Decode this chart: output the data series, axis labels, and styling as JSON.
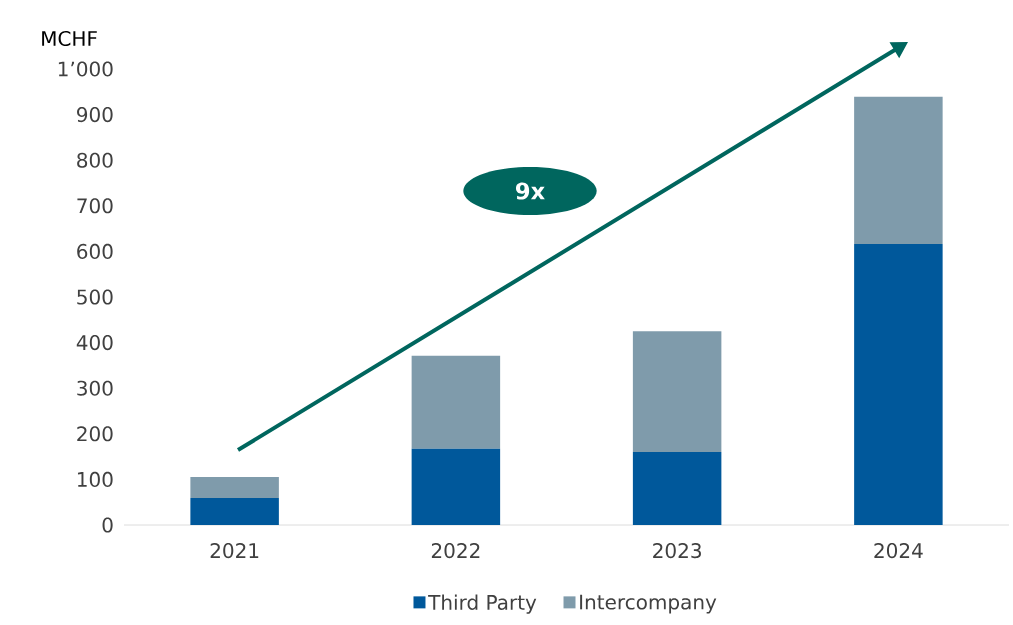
{
  "chart_data": {
    "type": "bar",
    "stacked": true,
    "ylabel": "MCHF",
    "categories": [
      "2021",
      "2022",
      "2023",
      "2024"
    ],
    "series": [
      {
        "name": "Third Party",
        "color": "#00589b",
        "values": [
          59,
          167,
          160,
          616
        ]
      },
      {
        "name": "Intercompany",
        "color": "#7f9bab",
        "values": [
          46,
          204,
          265,
          323
        ]
      }
    ],
    "ylim": [
      0,
      1000
    ],
    "yticks": [
      0,
      100,
      200,
      300,
      400,
      500,
      600,
      700,
      800,
      900,
      {
        "value": 1000,
        "label": "1’000"
      }
    ],
    "annotations": [
      "9x"
    ],
    "legend": "bottom",
    "grid": false
  }
}
